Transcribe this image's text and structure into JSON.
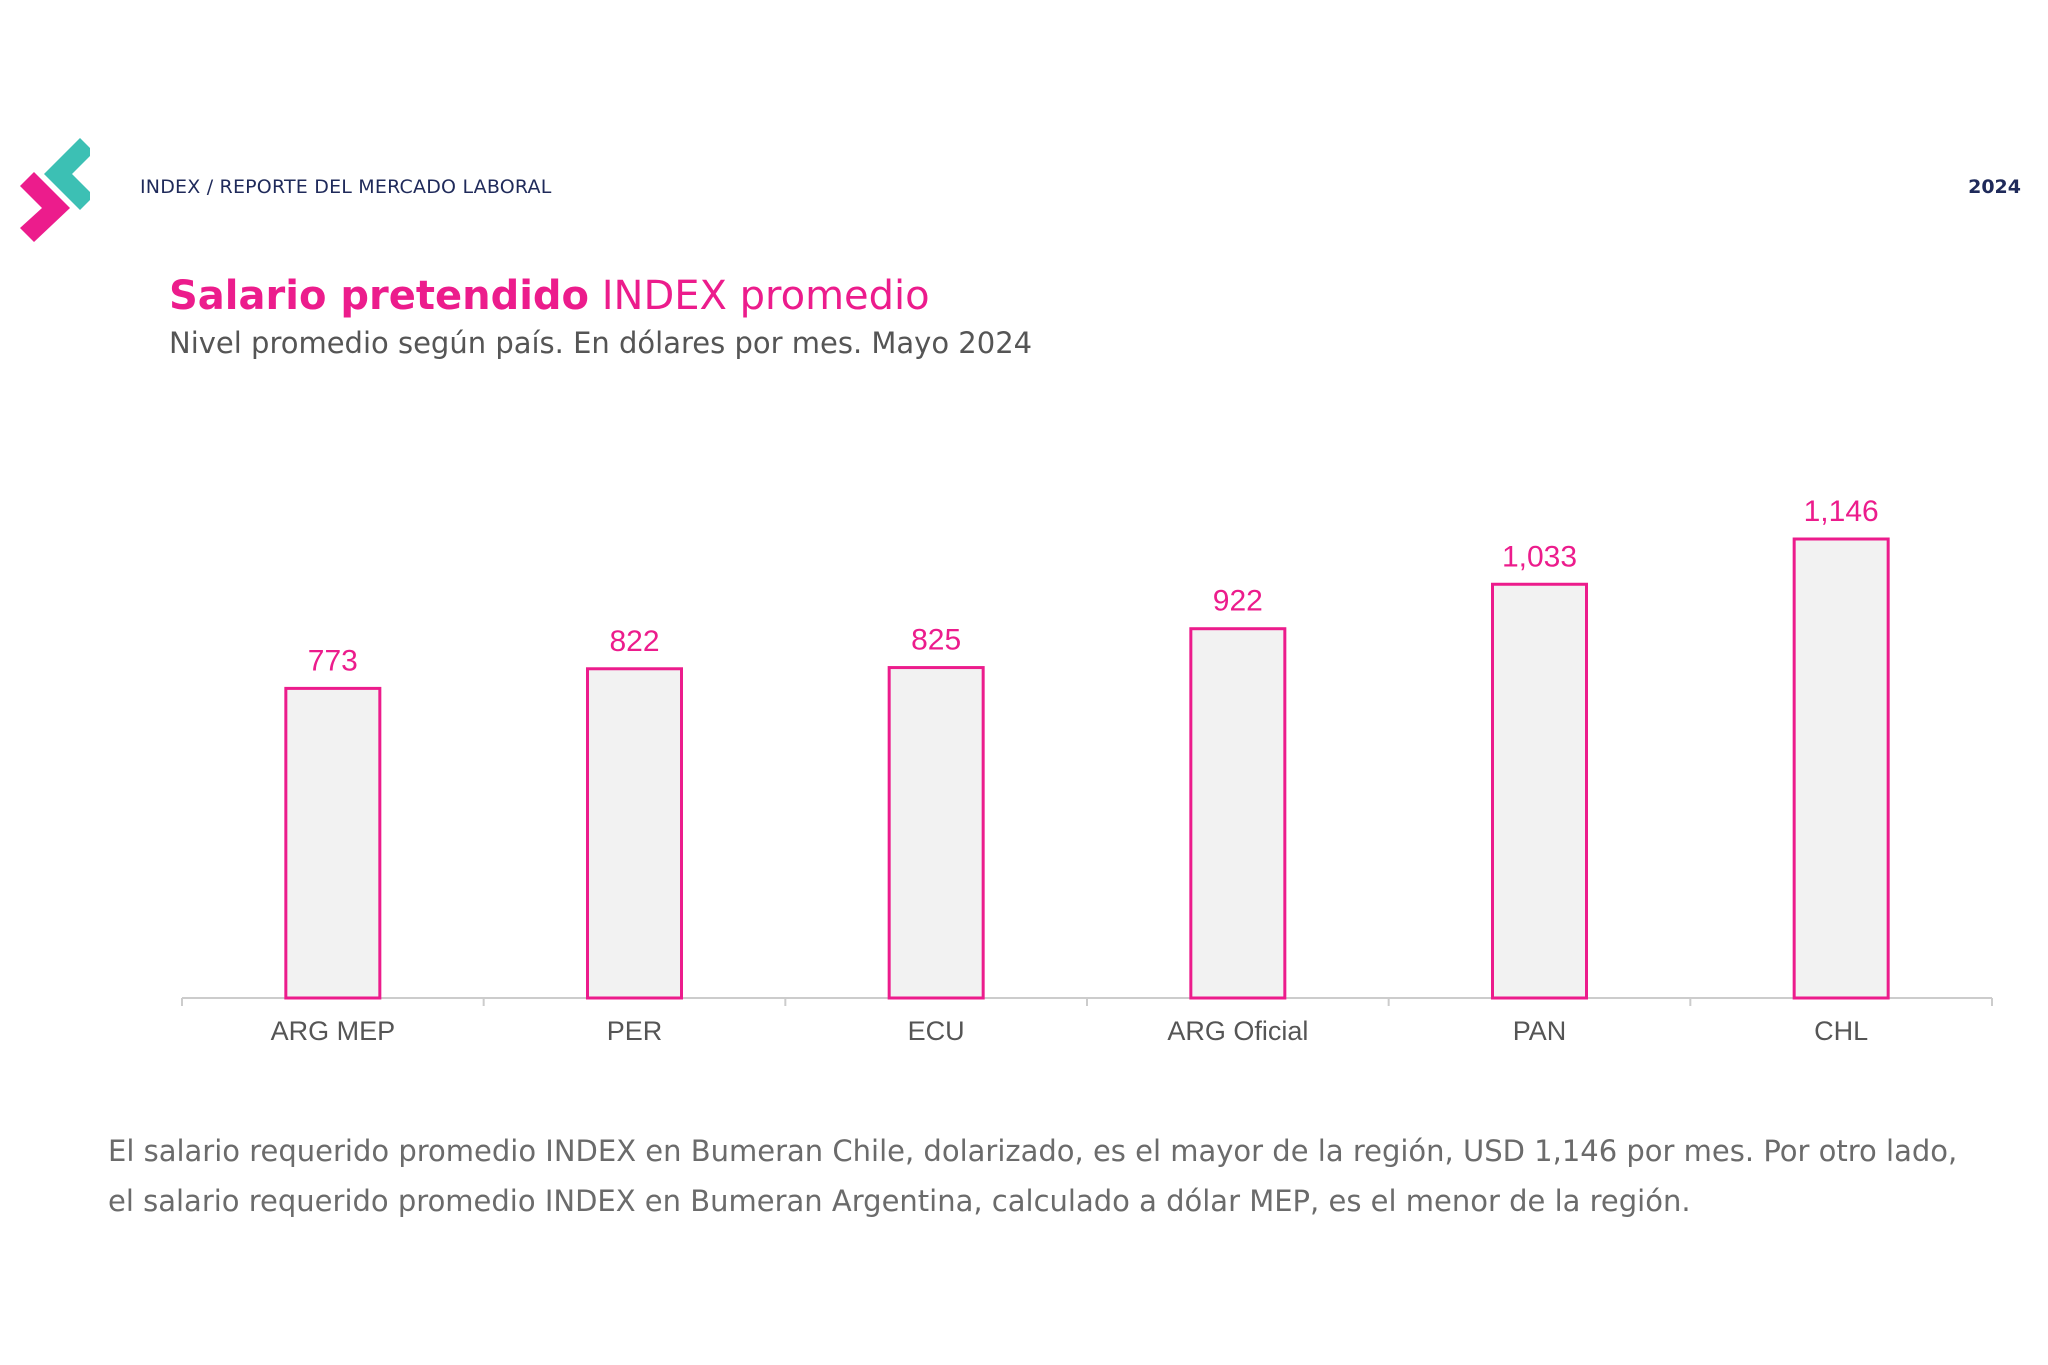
{
  "header": {
    "label": "INDEX / REPORTE DEL MERCADO LABORAL",
    "year": "2024"
  },
  "colors": {
    "accent": "#ec1c8c",
    "logo_teal": "#3cc0b4",
    "bar_fill": "#f2f2f2",
    "header_text": "#1f2a5a"
  },
  "icons": {
    "logo": "brand-chevron-logo-icon"
  },
  "chart_data": {
    "type": "bar",
    "title_bold": "Salario pretendido",
    "title_regular": "INDEX promedio",
    "subtitle": "Nivel promedio según país. En dólares por mes. Mayo 2024",
    "categories": [
      "ARG MEP",
      "PER",
      "ECU",
      "ARG Oficial",
      "PAN",
      "CHL"
    ],
    "values": [
      773,
      822,
      825,
      922,
      1033,
      1146
    ],
    "value_labels": [
      "773",
      "822",
      "825",
      "922",
      "1,033",
      "1,146"
    ],
    "xlabel": "",
    "ylabel": "",
    "ylim": [
      0,
      1146
    ],
    "grid": false,
    "legend": "none"
  },
  "footnote": "El salario requerido promedio INDEX en Bumeran Chile, dolarizado, es el mayor de la región, USD 1,146 por mes. Por otro lado, el salario requerido promedio INDEX en Bumeran Argentina, calculado a dólar MEP, es el menor de la región."
}
